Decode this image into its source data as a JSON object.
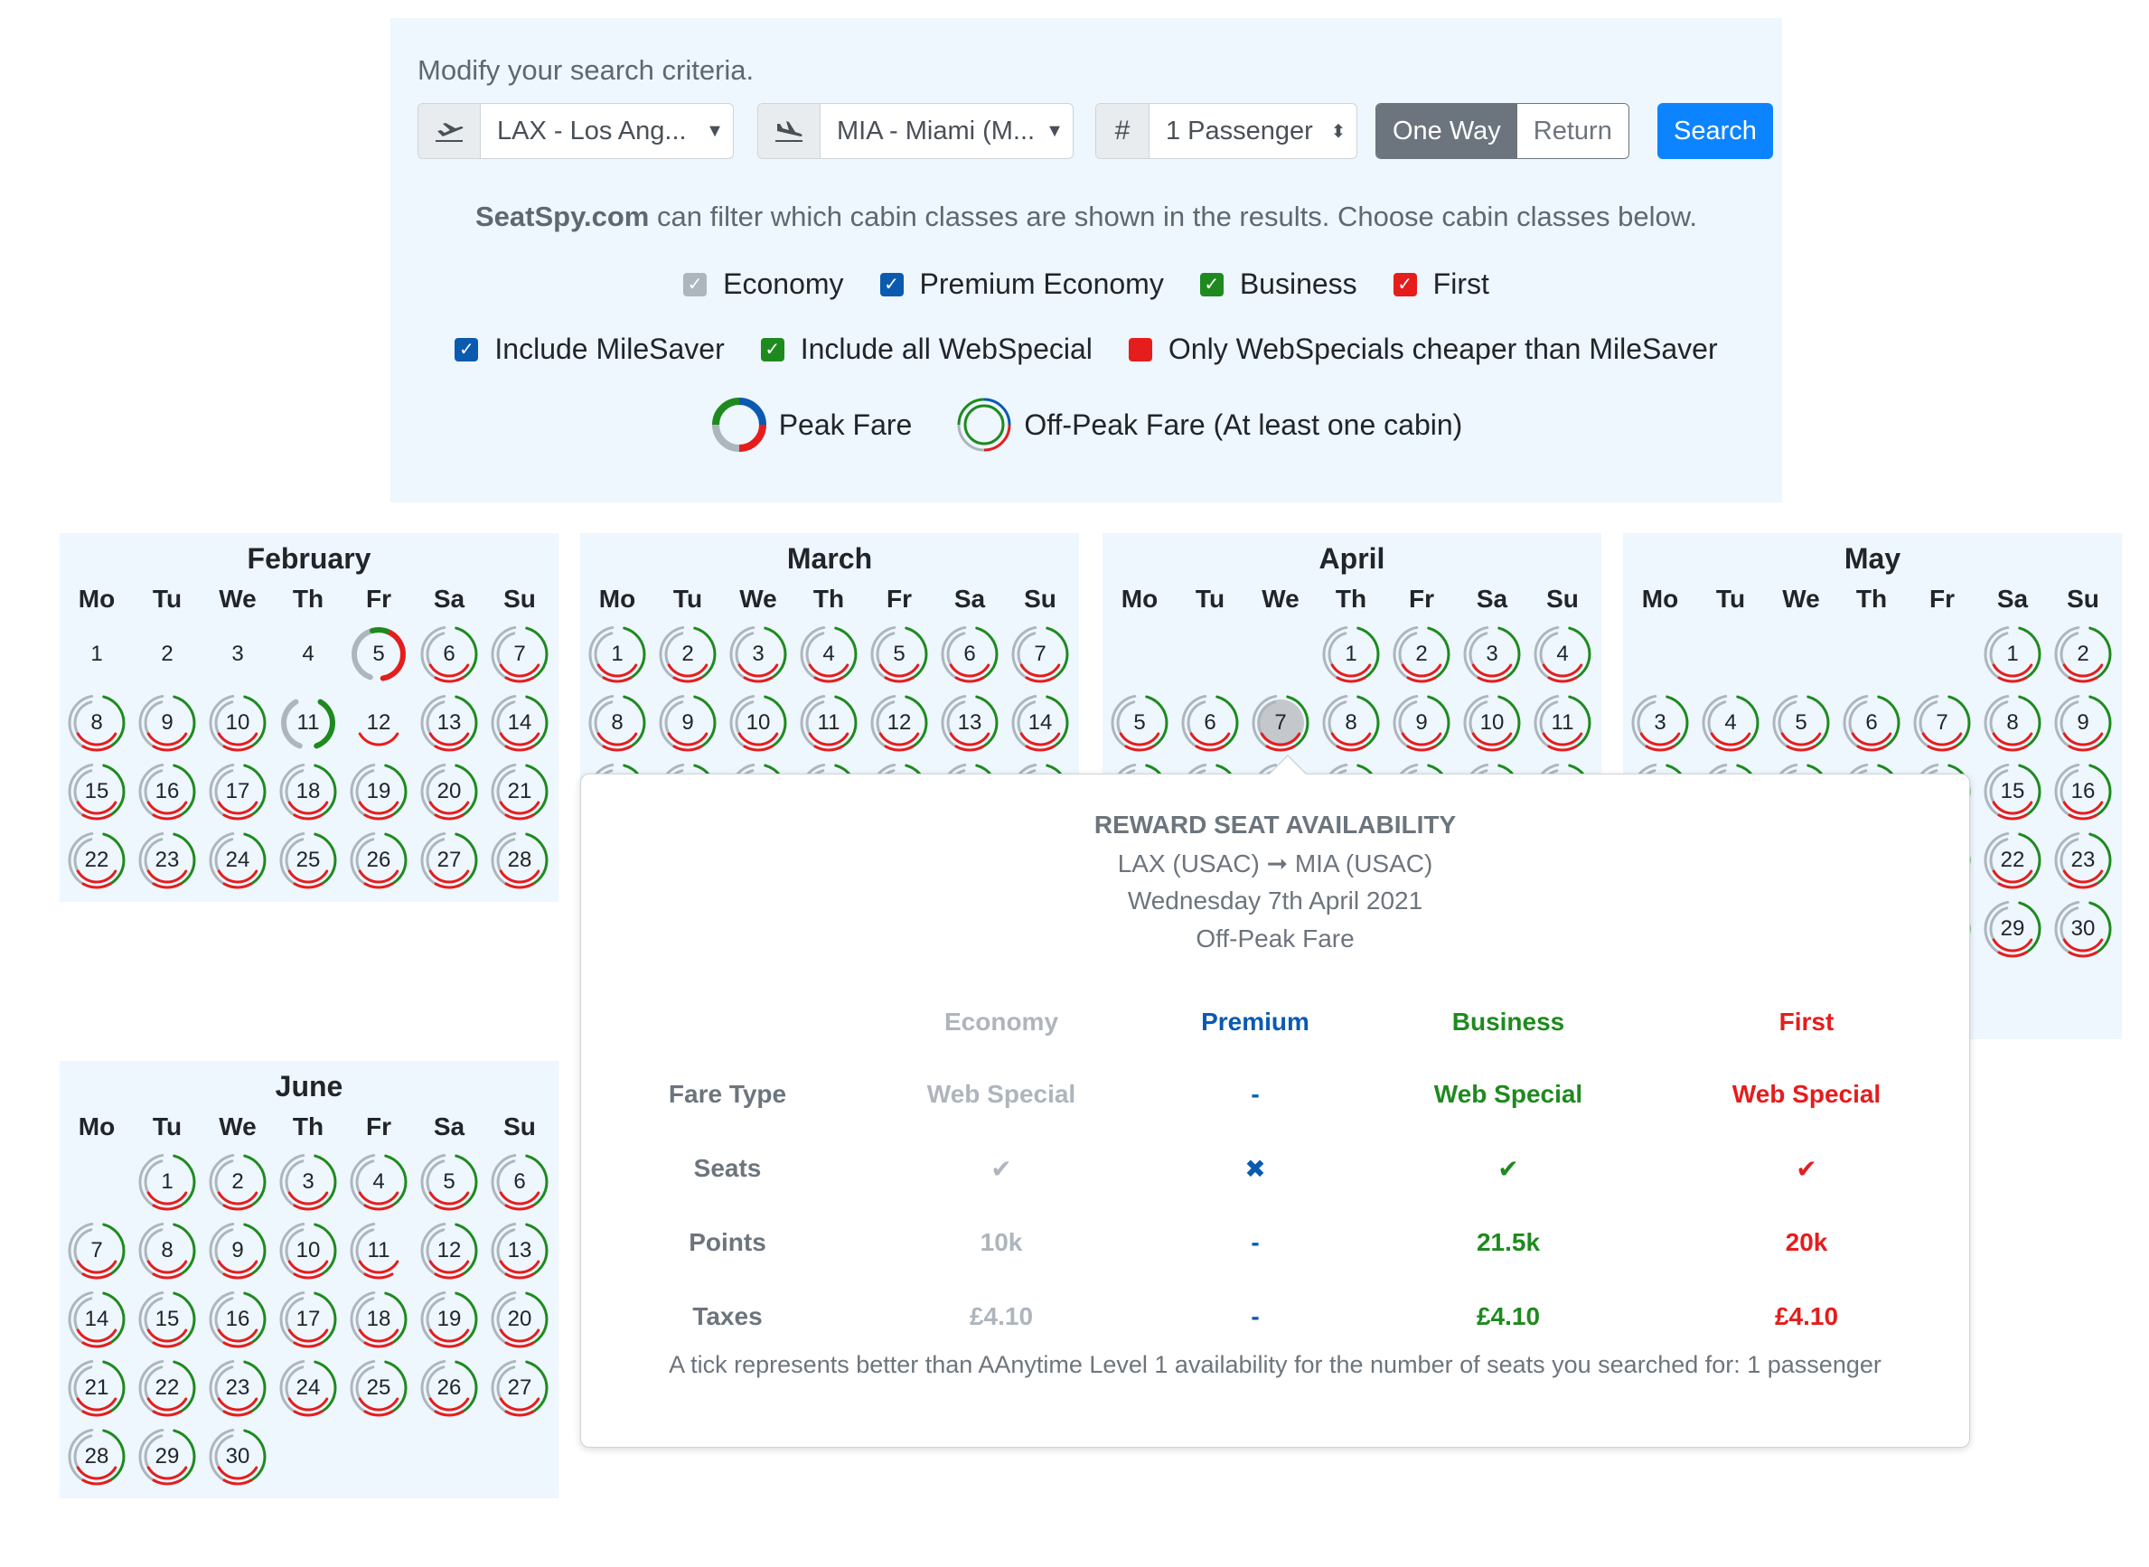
{
  "search": {
    "title": "Modify your search criteria.",
    "from": "LAX - Los Ang...",
    "to": "MIA - Miami (M...",
    "passengers": "1 Passenger",
    "one_way": "One Way",
    "return": "Return",
    "search_label": "Search",
    "info_brand": "SeatSpy.com",
    "info_text": " can filter which cabin classes are shown in the results. Choose cabin classes below.",
    "cabins": [
      {
        "label": "Economy",
        "color": "#adb5bd"
      },
      {
        "label": "Premium Economy",
        "color": "#0a5ab0"
      },
      {
        "label": "Business",
        "color": "#1e8a1e"
      },
      {
        "label": "First",
        "color": "#e51d1d"
      }
    ],
    "options": [
      {
        "label": "Include MileSaver",
        "color": "#0a5ab0",
        "checked": true
      },
      {
        "label": "Include all WebSpecial",
        "color": "#1e8a1e",
        "checked": true
      },
      {
        "label": "Only WebSpecials cheaper than MileSaver",
        "color": "#e51d1d",
        "checked": false
      }
    ],
    "legend_peak": "Peak Fare",
    "legend_offpeak": "Off-Peak Fare (At least one cabin)"
  },
  "weekdays": [
    "Mo",
    "Tu",
    "We",
    "Th",
    "Fr",
    "Sa",
    "Su"
  ],
  "months": [
    {
      "name": "February",
      "offset": 0,
      "days": 28,
      "plain": [
        1,
        2,
        3,
        4
      ],
      "special": {
        "5": "half",
        "11": "partial",
        "12": "red"
      }
    },
    {
      "name": "March",
      "offset": 0,
      "days": 31,
      "plain": [],
      "special": {}
    },
    {
      "name": "April",
      "offset": 3,
      "days": 31,
      "plain": [],
      "special": {
        "7": "selected"
      }
    },
    {
      "name": "May",
      "offset": 5,
      "days": 31,
      "plain": [],
      "special": {}
    },
    {
      "name": "June",
      "offset": 1,
      "days": 30,
      "plain": [],
      "special": {
        "11": "no-green"
      }
    }
  ],
  "popover": {
    "title": "REWARD SEAT AVAILABILITY",
    "route": "LAX (USAC) ➞ MIA (USAC)",
    "date": "Wednesday 7th April 2021",
    "fare": "Off-Peak Fare",
    "headers": [
      "Economy",
      "Premium",
      "Business",
      "First"
    ],
    "rows": [
      {
        "label": "Fare Type",
        "values": [
          "Web Special",
          "-",
          "Web Special",
          "Web Special"
        ]
      },
      {
        "label": "Seats",
        "values": [
          "✔",
          "✖",
          "✔",
          "✔"
        ]
      },
      {
        "label": "Points",
        "values": [
          "10k",
          "-",
          "21.5k",
          "20k"
        ]
      },
      {
        "label": "Taxes",
        "values": [
          "£4.10",
          "-",
          "£4.10",
          "£4.10"
        ]
      }
    ],
    "footer": "A tick represents better than AAnytime Level 1 availability for the number of seats you searched for: 1 passenger"
  }
}
